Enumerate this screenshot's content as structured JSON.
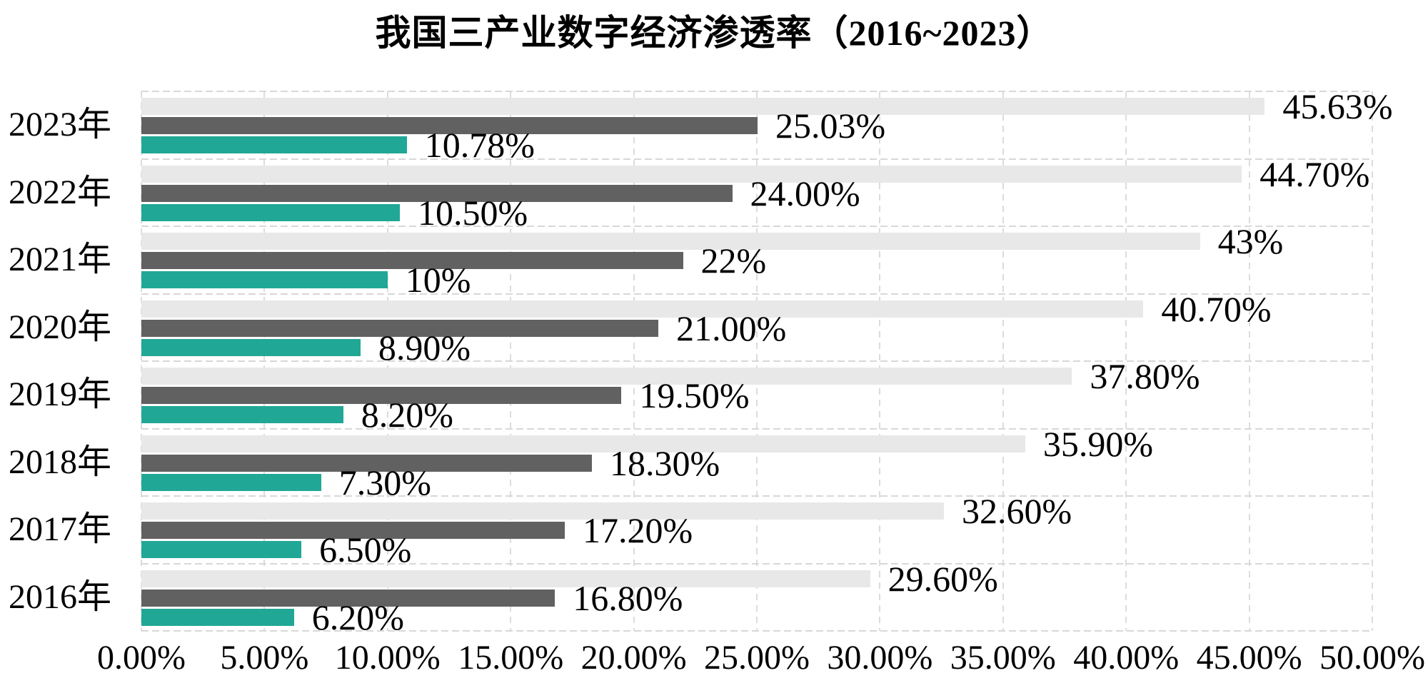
{
  "title": "我国三产业数字经济渗透率（2016~2023）",
  "colors": {
    "background": "#ffffff",
    "text": "#000000",
    "gridline": "#dcdcdc",
    "bar_light_gray": "#e8e8e8",
    "bar_dark_gray": "#616161",
    "bar_teal": "#21a795"
  },
  "chart_data": {
    "type": "bar",
    "orientation": "horizontal",
    "title": "我国三产业数字经济渗透率（2016~2023）",
    "categories": [
      "2023年",
      "2022年",
      "2021年",
      "2020年",
      "2019年",
      "2018年",
      "2017年",
      "2016年"
    ],
    "series": [
      {
        "name": "series-light-gray",
        "color": "#e8e8e8",
        "values": [
          45.63,
          44.7,
          43,
          40.7,
          37.8,
          35.9,
          32.6,
          29.6
        ],
        "labels": [
          "45.63%",
          "44.70%",
          "43%",
          "40.70%",
          "37.80%",
          "35.90%",
          "32.60%",
          "29.60%"
        ]
      },
      {
        "name": "series-dark-gray",
        "color": "#616161",
        "values": [
          25.03,
          24.0,
          22,
          21.0,
          19.5,
          18.3,
          17.2,
          16.8
        ],
        "labels": [
          "25.03%",
          "24.00%",
          "22%",
          "21.00%",
          "19.50%",
          "18.30%",
          "17.20%",
          "16.80%"
        ]
      },
      {
        "name": "series-teal",
        "color": "#21a795",
        "values": [
          10.78,
          10.5,
          10,
          8.9,
          8.2,
          7.3,
          6.5,
          6.2
        ],
        "labels": [
          "10.78%",
          "10.50%",
          "10%",
          "8.90%",
          "8.20%",
          "7.30%",
          "6.50%",
          "6.20%"
        ]
      }
    ],
    "xlim": [
      0,
      50
    ],
    "x_ticks": [
      "0.00%",
      "5.00%",
      "10.00%",
      "15.00%",
      "20.00%",
      "25.00%",
      "30.00%",
      "35.00%",
      "40.00%",
      "45.00%",
      "50.00%"
    ],
    "grid": "dashed",
    "legend": "none"
  }
}
